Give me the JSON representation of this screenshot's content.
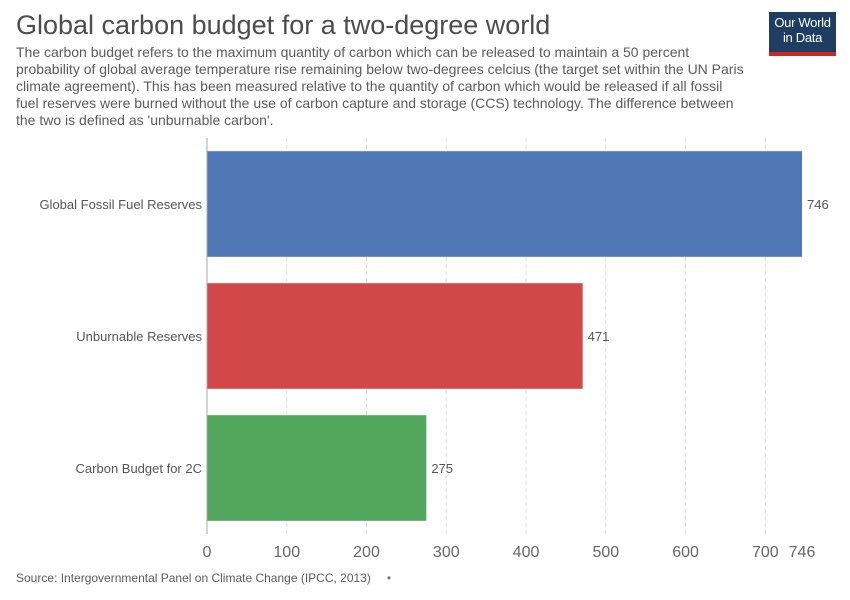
{
  "header": {
    "title": "Global carbon budget for a two-degree world",
    "subtitle": "The carbon budget refers to the maximum quantity of carbon which can be released to maintain a 50 percent probability of global average temperature rise remaining below two-degrees celcius (the target set within the UN Paris climate agreement). This has been measured relative to the quantity of carbon which would be released if all fossil fuel reserves were burned without the use of carbon capture and storage (CCS) technology. The difference between the two is defined as 'unburnable carbon'.",
    "logo_line1": "Our World",
    "logo_line2": "in Data"
  },
  "footer": {
    "source": "Source: Intergovernmental Panel on Climate Change (IPCC, 2013)",
    "dot": "•"
  },
  "chart_data": {
    "type": "bar",
    "orientation": "horizontal",
    "categories": [
      "Global Fossil Fuel Reserves",
      "Unburnable Reserves",
      "Carbon Budget for 2C"
    ],
    "values": [
      746,
      471,
      275
    ],
    "value_labels": [
      "746",
      "471",
      "275"
    ],
    "colors": [
      "#4f77b5",
      "#d2474a",
      "#52a75c"
    ],
    "xlim": [
      0,
      746
    ],
    "x_ticks": [
      0,
      100,
      200,
      300,
      400,
      500,
      600,
      700,
      746
    ],
    "x_tick_labels": [
      "0",
      "100",
      "200",
      "300",
      "400",
      "500",
      "600",
      "700",
      "746"
    ],
    "grid": true,
    "title": "",
    "xlabel": "",
    "ylabel": ""
  }
}
